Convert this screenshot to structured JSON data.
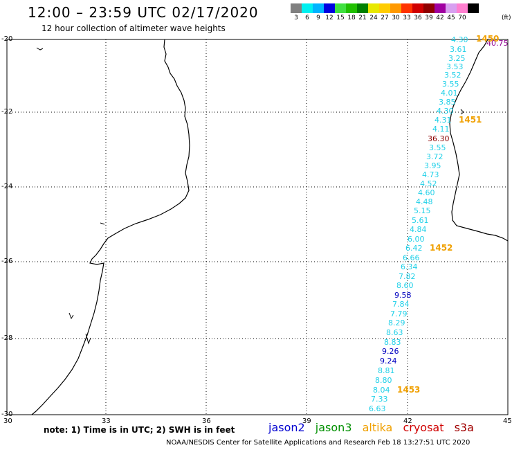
{
  "header": {
    "title": "12:00 – 23:59 UTC 02/17/2020",
    "subtitle": "12 hour collection of altimeter wave heights"
  },
  "scale": {
    "unit": "(ft)",
    "items": [
      {
        "label": "3",
        "color": "#808080"
      },
      {
        "label": "6",
        "color": "#00f0f0"
      },
      {
        "label": "9",
        "color": "#00b4ff"
      },
      {
        "label": "12",
        "color": "#0000e0"
      },
      {
        "label": "15",
        "color": "#40e040"
      },
      {
        "label": "18",
        "color": "#20c000"
      },
      {
        "label": "21",
        "color": "#008000"
      },
      {
        "label": "24",
        "color": "#e8e800"
      },
      {
        "label": "27",
        "color": "#ffcc00"
      },
      {
        "label": "30",
        "color": "#ff9900"
      },
      {
        "label": "33",
        "color": "#ff3300"
      },
      {
        "label": "36",
        "color": "#d00000"
      },
      {
        "label": "39",
        "color": "#900000"
      },
      {
        "label": "42",
        "color": "#a000a0"
      },
      {
        "label": "45",
        "color": "#d8a0f0"
      },
      {
        "label": "70",
        "color": "#ff80d0"
      },
      {
        "label": "",
        "color": "#000000"
      }
    ]
  },
  "map": {
    "y_labels": [
      "-20",
      "-22",
      "-24",
      "-26",
      "-28",
      "-30"
    ],
    "x_labels": [
      "30",
      "33",
      "36",
      "39",
      "42",
      "45"
    ]
  },
  "observations": [
    {
      "text": "4.30",
      "color": "#20d0e8"
    },
    {
      "text": "3.61",
      "color": "#20d0e8"
    },
    {
      "text": "3.25",
      "color": "#20d0e8"
    },
    {
      "text": "3.53",
      "color": "#20d0e8"
    },
    {
      "text": "3.52",
      "color": "#20d0e8"
    },
    {
      "text": "3.55",
      "color": "#20d0e8"
    },
    {
      "text": "4.01",
      "color": "#20d0e8"
    },
    {
      "text": "3.85",
      "color": "#20d0e8"
    },
    {
      "text": "4.30",
      "color": "#20d0e8"
    },
    {
      "text": "4.31",
      "color": "#20d0e8"
    },
    {
      "text": "4.11",
      "color": "#20d0e8"
    },
    {
      "text": "36.30",
      "color": "#8b0000"
    },
    {
      "text": "3.55",
      "color": "#20d0e8"
    },
    {
      "text": "3.72",
      "color": "#20d0e8"
    },
    {
      "text": "3.95",
      "color": "#20d0e8"
    },
    {
      "text": "4.73",
      "color": "#20d0e8"
    },
    {
      "text": "4.52",
      "color": "#20d0e8"
    },
    {
      "text": "4.60",
      "color": "#20d0e8"
    },
    {
      "text": "4.48",
      "color": "#20d0e8"
    },
    {
      "text": "5.15",
      "color": "#20d0e8"
    },
    {
      "text": "5.61",
      "color": "#20d0e8"
    },
    {
      "text": "4.84",
      "color": "#20d0e8"
    },
    {
      "text": "6.00",
      "color": "#20d0e8"
    },
    {
      "text": "6.42",
      "color": "#20d0e8"
    },
    {
      "text": "6.66",
      "color": "#20d0e8"
    },
    {
      "text": "6.34",
      "color": "#20d0e8"
    },
    {
      "text": "7.82",
      "color": "#20d0e8"
    },
    {
      "text": "8.60",
      "color": "#20d0e8"
    },
    {
      "text": "9.58",
      "color": "#0000c0"
    },
    {
      "text": "7.84",
      "color": "#20d0e8"
    },
    {
      "text": "7.79",
      "color": "#20d0e8"
    },
    {
      "text": "8.29",
      "color": "#20d0e8"
    },
    {
      "text": "8.63",
      "color": "#20d0e8"
    },
    {
      "text": "8.83",
      "color": "#20d0e8"
    },
    {
      "text": "9.26",
      "color": "#0000c0"
    },
    {
      "text": "9.24",
      "color": "#0000c0"
    },
    {
      "text": "8.81",
      "color": "#20d0e8"
    },
    {
      "text": "8.80",
      "color": "#20d0e8"
    },
    {
      "text": "8.04",
      "color": "#20d0e8"
    },
    {
      "text": "7.33",
      "color": "#20d0e8"
    },
    {
      "text": "6.63",
      "color": "#20d0e8"
    },
    {
      "text": "40.75",
      "color": "#900090"
    }
  ],
  "times": [
    "1450",
    "1451",
    "1452",
    "1453"
  ],
  "note": "note: 1) Time is in UTC; 2) SWH is in feet",
  "satellites": [
    {
      "name": "jason2",
      "color": "#0000d0"
    },
    {
      "name": "jason3",
      "color": "#009000"
    },
    {
      "name": "altika",
      "color": "#f0a000"
    },
    {
      "name": "cryosat",
      "color": "#d00000"
    },
    {
      "name": "s3a",
      "color": "#a00000"
    }
  ],
  "footer": "NOAA/NESDIS Center for Satellite Applications and Research   Feb 18 13:27:51 UTC 2020"
}
